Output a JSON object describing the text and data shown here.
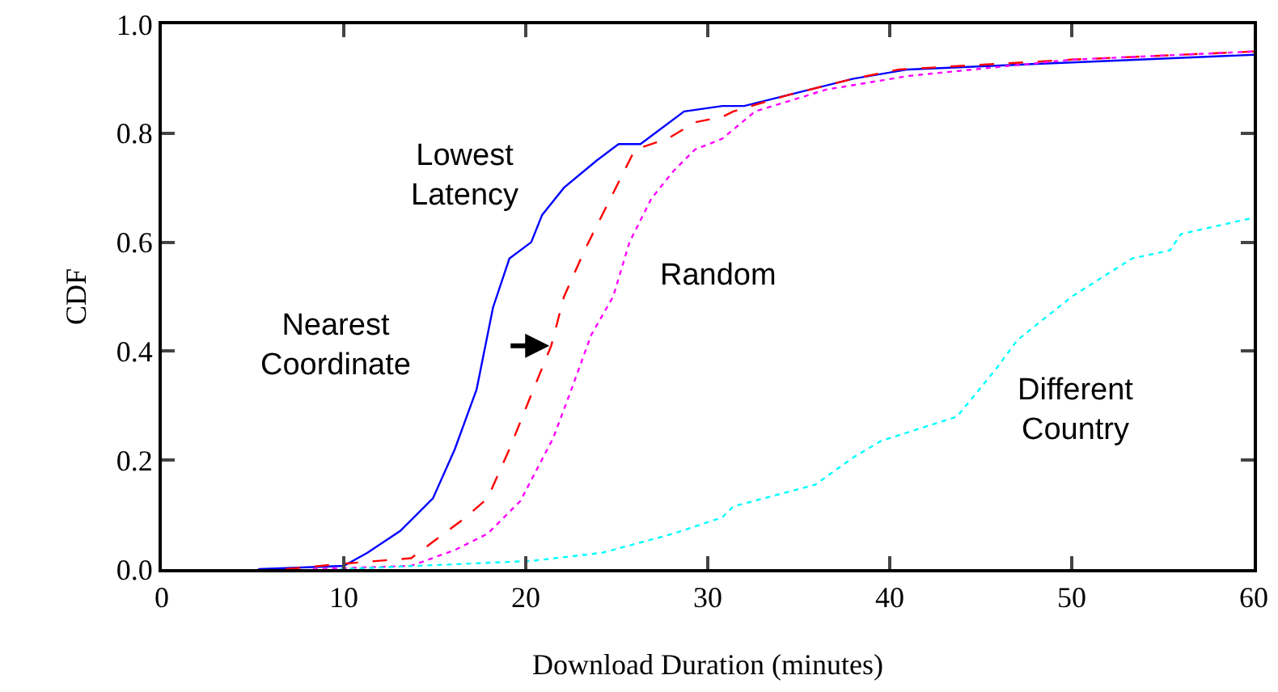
{
  "chart_data": {
    "type": "line",
    "xlabel": "Download Duration (minutes)",
    "ylabel": "CDF",
    "xlim": [
      0,
      60
    ],
    "xticks": [
      0,
      10,
      20,
      30,
      40,
      50,
      60
    ],
    "ylim": [
      0,
      1
    ],
    "yticks": [
      {
        "value": 0,
        "label": "0.0"
      },
      {
        "value": 0.2,
        "label": "0.2"
      },
      {
        "value": 0.4,
        "label": "0.4"
      },
      {
        "value": 0.6,
        "label": "0.6"
      },
      {
        "value": 0.8,
        "label": "0.8"
      },
      {
        "value": 1,
        "label": "1.0"
      }
    ],
    "grid": false,
    "legend": false,
    "marker": "none",
    "series": [
      {
        "name": "Lowest\nLatency",
        "color": "#0000ff",
        "line_style": "solid",
        "x": [
          5.3,
          10,
          11.3,
          13.1,
          14.9,
          16.1,
          17.3,
          18.2,
          19.1,
          20.3,
          20.9,
          22.1,
          23.9,
          25.1,
          26.3,
          28.7,
          30.8,
          32,
          34.4,
          38,
          41,
          50,
          60
        ],
        "values": [
          0,
          0.006,
          0.03,
          0.07,
          0.13,
          0.22,
          0.33,
          0.48,
          0.57,
          0.6,
          0.65,
          0.7,
          0.75,
          0.78,
          0.78,
          0.84,
          0.85,
          0.85,
          0.87,
          0.9,
          0.917,
          0.93,
          0.944
        ]
      },
      {
        "color": "#ff0000",
        "line_style": "dashed",
        "x": [
          6.8,
          10,
          13.7,
          14.9,
          16.7,
          17.9,
          19.1,
          20.3,
          21.4,
          22.1,
          23.3,
          24.8,
          26,
          27.8,
          29.3,
          30.8,
          31.4,
          34.4,
          38,
          40.5,
          50,
          60
        ],
        "values": [
          0,
          0.01,
          0.02,
          0.05,
          0.095,
          0.13,
          0.22,
          0.32,
          0.41,
          0.5,
          0.59,
          0.69,
          0.77,
          0.79,
          0.82,
          0.83,
          0.84,
          0.87,
          0.9,
          0.917,
          0.935,
          0.95
        ]
      },
      {
        "name": "Random",
        "color": "#ff00ff",
        "line_style": "dotted",
        "x": [
          8.3,
          13.7,
          16.1,
          17.9,
          19.7,
          21.5,
          22.4,
          23.6,
          24.8,
          25.7,
          26.9,
          28.1,
          29.3,
          30.8,
          32.6,
          36.5,
          41,
          50,
          60
        ],
        "values": [
          0,
          0.006,
          0.035,
          0.065,
          0.125,
          0.24,
          0.32,
          0.43,
          0.5,
          0.6,
          0.68,
          0.73,
          0.77,
          0.79,
          0.84,
          0.88,
          0.905,
          0.935,
          0.95
        ]
      },
      {
        "name": "Different\nCountry",
        "color": "#00ffff",
        "line_style": "dotted",
        "x": [
          9.8,
          20.3,
          24.2,
          28.1,
          30.8,
          31.4,
          35.9,
          38,
          39.5,
          43.7,
          45.9,
          47,
          50,
          53.3,
          55.4,
          56,
          60
        ],
        "values": [
          0,
          0.015,
          0.03,
          0.065,
          0.095,
          0.115,
          0.155,
          0.205,
          0.235,
          0.28,
          0.37,
          0.42,
          0.5,
          0.57,
          0.585,
          0.615,
          0.645
        ]
      }
    ],
    "annotations": [
      {
        "text": "Nearest\nCoordinate",
        "x": 21.3,
        "y": 0.41
      }
    ]
  }
}
